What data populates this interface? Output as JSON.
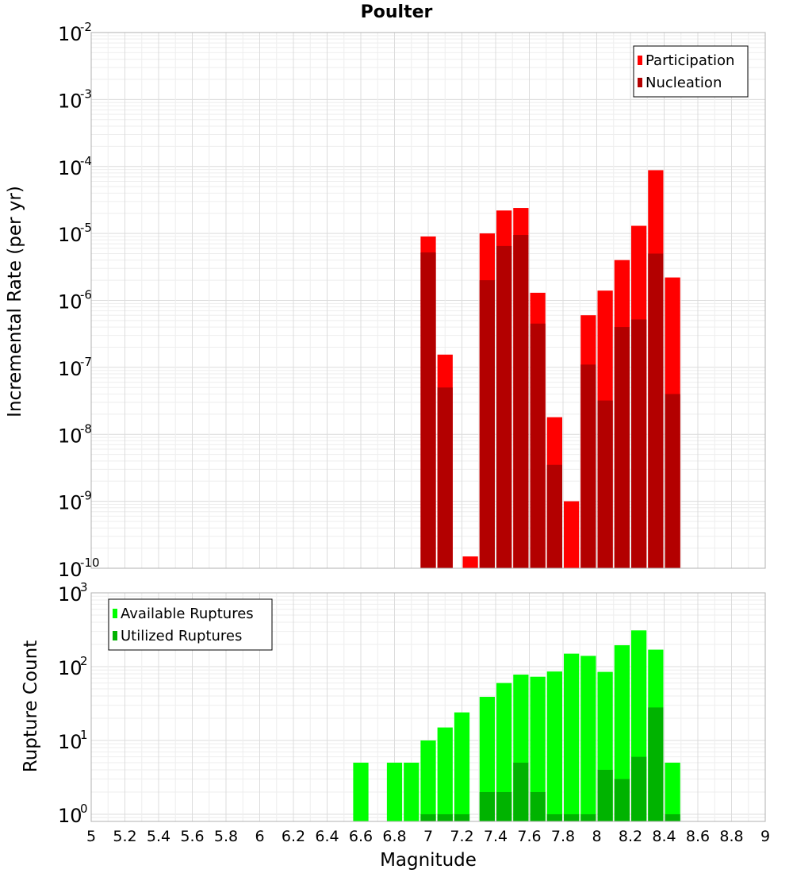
{
  "chart_data": [
    {
      "type": "bar",
      "title": "Poulter",
      "ylabel": "Incremental Rate (per yr)",
      "yscale": "log",
      "ylim": [
        1e-10,
        0.01
      ],
      "xlim": [
        5,
        9
      ],
      "grid": true,
      "legend_position": "top-right",
      "y_tick_labels": [
        {
          "base": "10",
          "exp": "-2",
          "value": 0.01
        },
        {
          "base": "10",
          "exp": "-3",
          "value": 0.001
        },
        {
          "base": "10",
          "exp": "-4",
          "value": 0.0001
        },
        {
          "base": "10",
          "exp": "-5",
          "value": 1e-05
        },
        {
          "base": "10",
          "exp": "-6",
          "value": 1e-06
        },
        {
          "base": "10",
          "exp": "-7",
          "value": 1e-07
        },
        {
          "base": "10",
          "exp": "-8",
          "value": 1e-08
        },
        {
          "base": "10",
          "exp": "-9",
          "value": 1e-09
        },
        {
          "base": "10",
          "exp": "-10",
          "value": 1e-10
        }
      ],
      "series": [
        {
          "name": "Participation",
          "color": "#ff0000",
          "points": [
            [
              7.0,
              9e-06
            ],
            [
              7.1,
              1.55e-07
            ],
            [
              7.25,
              1.5e-10
            ],
            [
              7.35,
              1e-05
            ],
            [
              7.45,
              2.2e-05
            ],
            [
              7.55,
              2.4e-05
            ],
            [
              7.65,
              1.3e-06
            ],
            [
              7.75,
              1.8e-08
            ],
            [
              7.85,
              1e-09
            ],
            [
              7.95,
              6e-07
            ],
            [
              8.05,
              1.4e-06
            ],
            [
              8.15,
              4e-06
            ],
            [
              8.25,
              1.3e-05
            ],
            [
              8.35,
              8.8e-05
            ],
            [
              8.45,
              2.2e-06
            ]
          ]
        },
        {
          "name": "Nucleation",
          "color": "#b30000",
          "points": [
            [
              7.0,
              5.2e-06
            ],
            [
              7.1,
              5e-08
            ],
            [
              7.35,
              2e-06
            ],
            [
              7.45,
              6.5e-06
            ],
            [
              7.55,
              9.5e-06
            ],
            [
              7.65,
              4.5e-07
            ],
            [
              7.75,
              3.5e-09
            ],
            [
              7.95,
              1.1e-07
            ],
            [
              8.05,
              3.2e-08
            ],
            [
              8.15,
              4e-07
            ],
            [
              8.25,
              5.2e-07
            ],
            [
              8.35,
              5e-06
            ],
            [
              8.45,
              4e-08
            ]
          ]
        }
      ]
    },
    {
      "type": "bar",
      "ylabel": "Rupture Count",
      "xlabel": "Magnitude",
      "yscale": "log",
      "ylim": [
        0.8,
        1000
      ],
      "xlim": [
        5,
        9
      ],
      "grid": true,
      "legend_position": "top-left",
      "x_tick_labels": [
        "5",
        "5.2",
        "5.4",
        "5.6",
        "5.8",
        "6",
        "6.2",
        "6.4",
        "6.6",
        "6.8",
        "7",
        "7.2",
        "7.4",
        "7.6",
        "7.8",
        "8",
        "8.2",
        "8.4",
        "8.6",
        "8.8",
        "9"
      ],
      "y_tick_labels": [
        {
          "base": "10",
          "exp": "3",
          "value": 1000
        },
        {
          "base": "10",
          "exp": "2",
          "value": 100
        },
        {
          "base": "10",
          "exp": "1",
          "value": 10
        },
        {
          "base": "10",
          "exp": "0",
          "value": 1
        }
      ],
      "series": [
        {
          "name": "Available Ruptures",
          "color": "#00ff00",
          "points": [
            [
              6.6,
              5
            ],
            [
              6.8,
              5
            ],
            [
              6.9,
              5
            ],
            [
              7.0,
              10
            ],
            [
              7.1,
              15
            ],
            [
              7.2,
              24
            ],
            [
              7.35,
              39
            ],
            [
              7.45,
              60
            ],
            [
              7.55,
              78
            ],
            [
              7.65,
              73
            ],
            [
              7.75,
              86
            ],
            [
              7.85,
              150
            ],
            [
              7.95,
              140
            ],
            [
              8.05,
              85
            ],
            [
              8.15,
              195
            ],
            [
              8.25,
              310
            ],
            [
              8.35,
              170
            ],
            [
              8.45,
              5
            ]
          ]
        },
        {
          "name": "Utilized Ruptures",
          "color": "#00b300",
          "points": [
            [
              7.0,
              1
            ],
            [
              7.1,
              1
            ],
            [
              7.2,
              1
            ],
            [
              7.35,
              2
            ],
            [
              7.45,
              2
            ],
            [
              7.55,
              5
            ],
            [
              7.65,
              2
            ],
            [
              7.75,
              1
            ],
            [
              7.85,
              1
            ],
            [
              7.95,
              1
            ],
            [
              8.05,
              4
            ],
            [
              8.15,
              3
            ],
            [
              8.25,
              6
            ],
            [
              8.35,
              28
            ],
            [
              8.45,
              1
            ]
          ]
        }
      ]
    }
  ]
}
